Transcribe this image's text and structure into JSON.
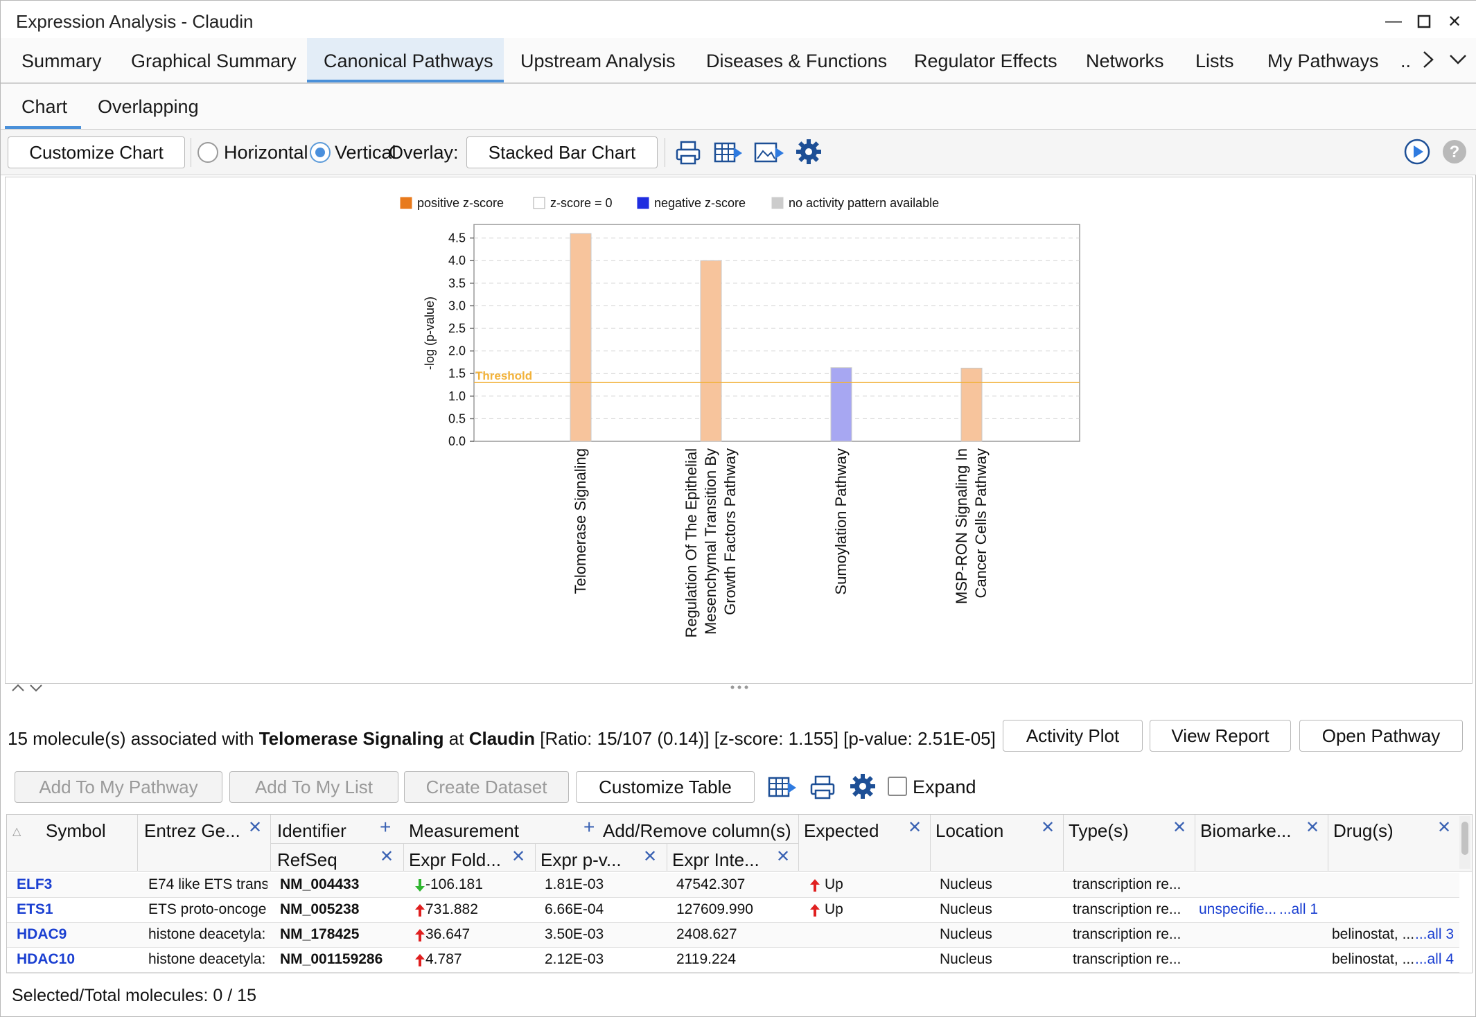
{
  "window": {
    "title": "Expression Analysis - Claudin"
  },
  "tabs": [
    "Summary",
    "Graphical Summary",
    "Canonical Pathways",
    "Upstream Analysis",
    "Diseases & Functions",
    "Regulator Effects",
    "Networks",
    "Lists",
    "My Pathways",
    ".."
  ],
  "subtabs": [
    "Chart",
    "Overlapping"
  ],
  "toolbar": {
    "customize_chart": "Customize Chart",
    "horizontal": "Horizontal",
    "vertical": "Vertical",
    "overlay": "Overlay:",
    "stacked": "Stacked Bar Chart"
  },
  "chart_data": {
    "type": "bar",
    "legend": [
      {
        "label": "positive z-score",
        "color": "#e87a1c"
      },
      {
        "label": "z-score = 0",
        "color": "#ffffff"
      },
      {
        "label": "negative z-score",
        "color": "#1f2de0"
      },
      {
        "label": "no activity pattern available",
        "color": "#cccccc"
      }
    ],
    "legend_position": "top",
    "ylabel": "-log (p-value)",
    "ylim": [
      0,
      4.8
    ],
    "yticks": [
      "0.0",
      "0.5",
      "1.0",
      "1.5",
      "2.0",
      "2.5",
      "3.0",
      "3.5",
      "4.0",
      "4.5"
    ],
    "threshold": {
      "label": "Threshold",
      "value": 1.3
    },
    "categories": [
      [
        "Telomerase Signaling"
      ],
      [
        "Regulation Of The Epithelial",
        "Mesenchymal Transition By",
        "Growth Factors Pathway"
      ],
      [
        "Sumoylation Pathway"
      ],
      [
        "MSP-RON Signaling In",
        "Cancer Cells Pathway"
      ]
    ],
    "values": [
      4.6,
      4.0,
      1.63,
      1.62
    ],
    "bar_colors": [
      "#f7c49c",
      "#f7c49c",
      "#a7a7f2",
      "#f7c49c"
    ],
    "grid": true
  },
  "detail": {
    "prefix": "15 molecule(s) associated with ",
    "pathway": "Telomerase Signaling",
    "at": " at ",
    "dataset": "Claudin",
    "stats": " [Ratio: 15/107 (0.14)] [z-score: 1.155] [p-value: 2.51E-05]",
    "activity_plot": "Activity Plot",
    "view_report": "View Report",
    "open_pathway": "Open Pathway"
  },
  "table_toolbar": {
    "add_pathway": "Add To My Pathway",
    "add_list": "Add To My List",
    "create_dataset": "Create Dataset",
    "customize_table": "Customize Table",
    "expand": "Expand"
  },
  "table": {
    "headers": {
      "symbol": "Symbol",
      "entrez": "Entrez Ge...",
      "identifier": "Identifier",
      "refseq": "RefSeq",
      "measurement": "Measurement",
      "addremove": "Add/Remove column(s)",
      "expr_fold": "Expr Fold...",
      "expr_p": "Expr p-v...",
      "expr_int": "Expr Inte...",
      "expected": "Expected",
      "location": "Location",
      "types": "Type(s)",
      "biomarker": "Biomarke...",
      "drugs": "Drug(s)"
    },
    "rows": [
      {
        "symbol": "ELF3",
        "entrez": "E74 like ETS trans",
        "refseq": "NM_004433",
        "dir": "down",
        "fold": "-106.181",
        "p": "1.81E-03",
        "int": "47542.307",
        "expected": "Up",
        "location": "Nucleus",
        "type": "transcription re...",
        "biomarker": "",
        "biomarker_all": "",
        "drug": "",
        "drug_all": ""
      },
      {
        "symbol": "ETS1",
        "entrez": "ETS proto-oncoge",
        "refseq": "NM_005238",
        "dir": "up",
        "fold": "731.882",
        "p": "6.66E-04",
        "int": "127609.990",
        "expected": "Up",
        "location": "Nucleus",
        "type": "transcription re...",
        "biomarker": "unspecifie... ",
        "biomarker_all": "...all 1",
        "drug": "",
        "drug_all": ""
      },
      {
        "symbol": "HDAC9",
        "entrez": "histone deacetyla:",
        "refseq": "NM_178425",
        "dir": "up",
        "fold": "36.647",
        "p": "3.50E-03",
        "int": "2408.627",
        "expected": "",
        "location": "Nucleus",
        "type": "transcription re...",
        "biomarker": "",
        "biomarker_all": "",
        "drug": "belinostat, ... ",
        "drug_all": "...all 3"
      },
      {
        "symbol": "HDAC10",
        "entrez": "histone deacetyla:",
        "refseq": "NM_001159286",
        "dir": "up",
        "fold": "4.787",
        "p": "2.12E-03",
        "int": "2119.224",
        "expected": "",
        "location": "Nucleus",
        "type": "transcription re...",
        "biomarker": "",
        "biomarker_all": "",
        "drug": "belinostat, ... ",
        "drug_all": "...all 4"
      }
    ]
  },
  "status": "Selected/Total molecules: 0 / 15"
}
